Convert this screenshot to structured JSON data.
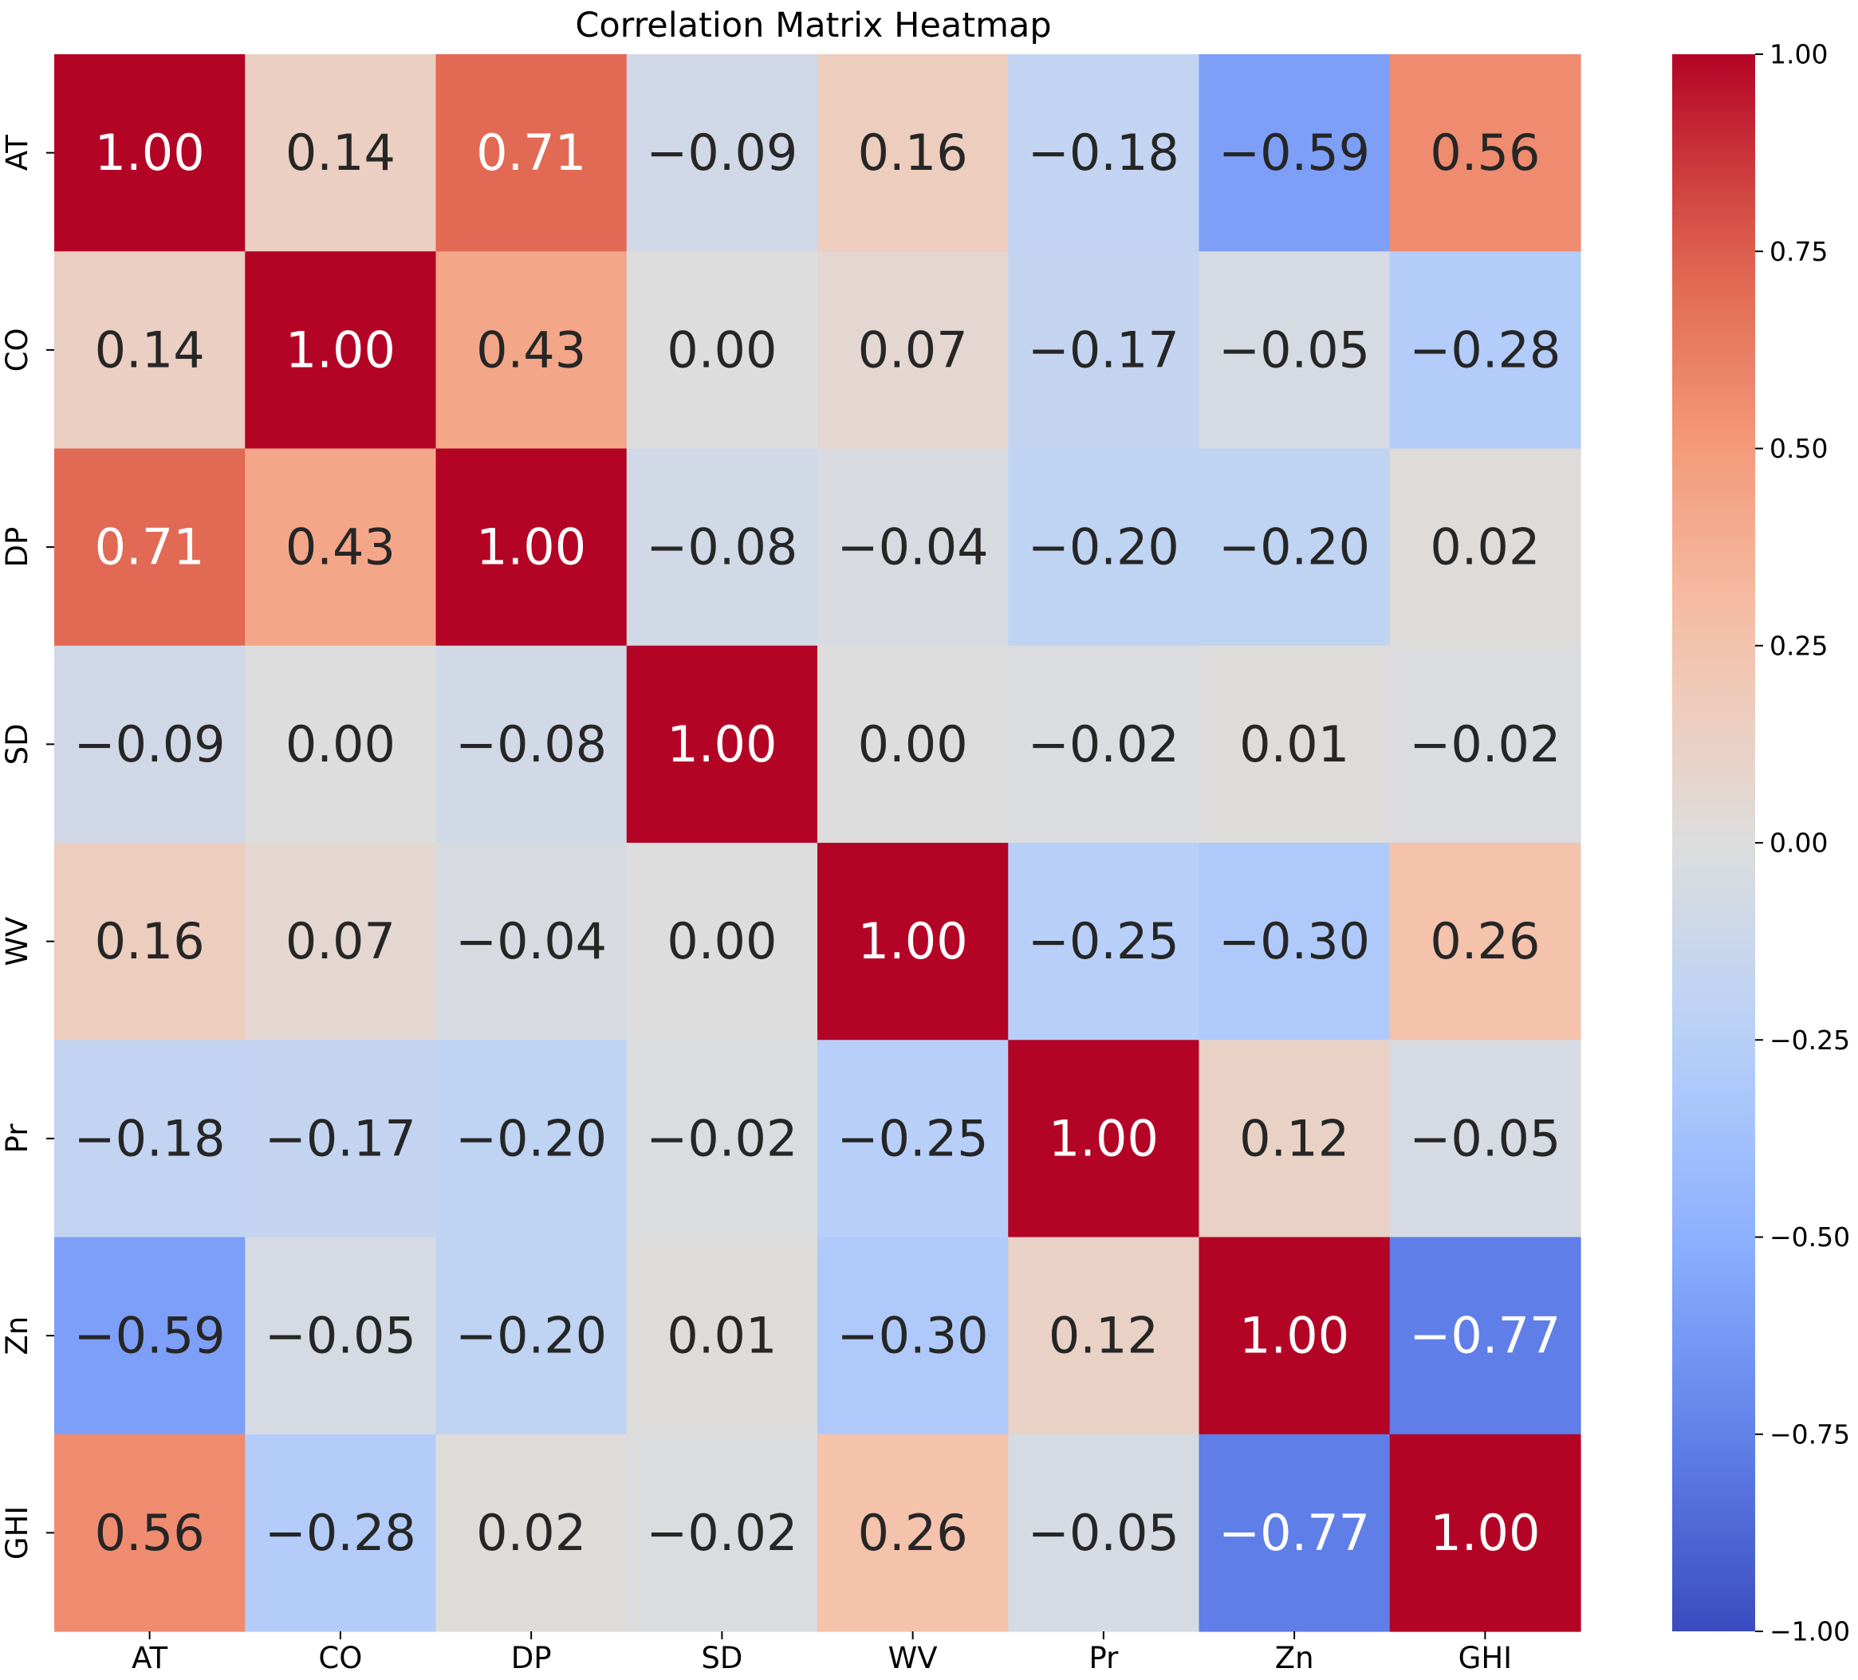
{
  "chart_data": {
    "type": "heatmap",
    "title": "Correlation Matrix Heatmap",
    "xlabel": "",
    "ylabel": "",
    "colormap": "coolwarm",
    "x_categories": [
      "AT",
      "CO",
      "DP",
      "SD",
      "WV",
      "Pr",
      "Zn",
      "GHI"
    ],
    "y_categories": [
      "AT",
      "CO",
      "DP",
      "SD",
      "WV",
      "Pr",
      "Zn",
      "GHI"
    ],
    "matrix": [
      [
        1.0,
        0.14,
        0.71,
        -0.09,
        0.16,
        -0.18,
        -0.59,
        0.56
      ],
      [
        0.14,
        1.0,
        0.43,
        0.0,
        0.07,
        -0.17,
        -0.05,
        -0.28
      ],
      [
        0.71,
        0.43,
        1.0,
        -0.08,
        -0.04,
        -0.2,
        -0.2,
        0.02
      ],
      [
        -0.09,
        0.0,
        -0.08,
        1.0,
        0.0,
        -0.02,
        0.01,
        -0.02
      ],
      [
        0.16,
        0.07,
        -0.04,
        0.0,
        1.0,
        -0.25,
        -0.3,
        0.26
      ],
      [
        -0.18,
        -0.17,
        -0.2,
        -0.02,
        -0.25,
        1.0,
        0.12,
        -0.05
      ],
      [
        -0.59,
        -0.05,
        -0.2,
        0.01,
        -0.3,
        0.12,
        1.0,
        -0.77
      ],
      [
        0.56,
        -0.28,
        0.02,
        -0.02,
        0.26,
        -0.05,
        -0.77,
        1.0
      ]
    ],
    "annotation_format": "0.00",
    "colorbar": {
      "vmin": -1.0,
      "vmax": 1.0,
      "ticks": [
        1.0,
        0.75,
        0.5,
        0.25,
        0.0,
        -0.25,
        -0.5,
        -0.75,
        -1.0
      ],
      "tick_labels": [
        "1.00",
        "0.75",
        "0.50",
        "0.25",
        "0.00",
        "−0.25",
        "−0.50",
        "−0.75",
        "−1.00"
      ]
    },
    "grid": false,
    "legend": "colorbar-right"
  }
}
